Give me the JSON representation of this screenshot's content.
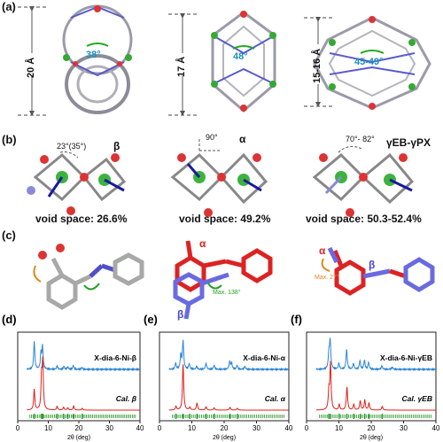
{
  "panels": {
    "a": {
      "label": "(a)",
      "structures": [
        {
          "height": "20 Å",
          "angle": "38°"
        },
        {
          "height": "17 Å",
          "angle": "48°"
        },
        {
          "height": "15-16 Å",
          "angle": "45-49°"
        }
      ]
    },
    "b": {
      "label": "(b)",
      "structures": [
        {
          "angle": "23°(35°)",
          "phase": "β",
          "void": "void space: 26.6%"
        },
        {
          "angle": "90°",
          "phase": "α",
          "void": "void space: 49.2%"
        },
        {
          "angle": "70°- 82°",
          "phase": "γEB-γPX",
          "void": "void space: 50.3-52.4%"
        }
      ]
    },
    "c": {
      "label": "(c)",
      "middle_annotation": "Max. 138°",
      "middle_alpha": "α",
      "middle_beta": "β",
      "right_annotation": "Max. 27°",
      "right_alpha": "α",
      "right_beta": "β"
    }
  },
  "colors": {
    "experimental": "#2f86d6",
    "calculated": "#e0201b",
    "ticks": "#2e9a2e",
    "teal_angle": "#1c8fb8"
  },
  "chart_data": [
    {
      "panel": "(d)",
      "type": "line",
      "xlabel": "2θ (deg)",
      "xlim": [
        0,
        40
      ],
      "xticks": [
        0,
        10,
        20,
        30,
        40
      ],
      "series": [
        {
          "name": "X-dia-6-Ni-β",
          "peaks": [
            [
              5.4,
              1.0
            ],
            [
              7.6,
              0.55
            ],
            [
              8.1,
              0.8
            ],
            [
              12.9,
              0.12
            ],
            [
              15.1,
              0.1
            ],
            [
              16.4,
              0.09
            ],
            [
              18.2,
              0.14
            ],
            [
              21.0,
              0.07
            ]
          ]
        },
        {
          "name": "Cal. β",
          "peaks": [
            [
              5.4,
              0.45
            ],
            [
              7.8,
              0.7
            ],
            [
              8.2,
              1.0
            ],
            [
              12.9,
              0.08
            ],
            [
              15.0,
              0.06
            ],
            [
              16.4,
              0.05
            ],
            [
              18.3,
              0.09
            ],
            [
              21.1,
              0.04
            ]
          ]
        }
      ]
    },
    {
      "panel": "(e)",
      "type": "line",
      "xlabel": "2θ (deg)",
      "xlim": [
        0,
        40
      ],
      "xticks": [
        0,
        10,
        20,
        30,
        40
      ],
      "series": [
        {
          "name": "X-dia-6-Ni-α",
          "peaks": [
            [
              5.0,
              0.22
            ],
            [
              6.6,
              0.5
            ],
            [
              7.3,
              1.0
            ],
            [
              9.2,
              0.2
            ],
            [
              11.5,
              0.1
            ],
            [
              14.4,
              0.22
            ],
            [
              16.9,
              0.15
            ],
            [
              21.7,
              0.28
            ],
            [
              22.3,
              0.22
            ],
            [
              24.0,
              0.15
            ],
            [
              26.4,
              0.1
            ]
          ]
        },
        {
          "name": "Cal. α",
          "peaks": [
            [
              5.1,
              0.08
            ],
            [
              7.3,
              1.0
            ],
            [
              9.4,
              0.06
            ],
            [
              11.6,
              0.15
            ],
            [
              14.4,
              0.07
            ],
            [
              16.9,
              0.05
            ],
            [
              21.8,
              0.06
            ],
            [
              24.1,
              0.04
            ]
          ]
        }
      ]
    },
    {
      "panel": "(f)",
      "type": "line",
      "xlabel": "2θ (deg)",
      "xlim": [
        0,
        40
      ],
      "xticks": [
        0,
        10,
        20,
        30,
        40
      ],
      "series": [
        {
          "name": "X-dia-6-Ni-γEB",
          "peaks": [
            [
              6.9,
              0.55
            ],
            [
              7.3,
              1.0
            ],
            [
              10.0,
              0.22
            ],
            [
              12.4,
              0.7
            ],
            [
              14.5,
              0.2
            ],
            [
              16.5,
              0.3
            ],
            [
              17.9,
              0.32
            ],
            [
              19.2,
              0.25
            ],
            [
              23.3,
              0.12
            ],
            [
              26.5,
              0.08
            ]
          ]
        },
        {
          "name": "Cal. γEB",
          "peaks": [
            [
              6.9,
              0.4
            ],
            [
              7.4,
              1.0
            ],
            [
              10.1,
              0.12
            ],
            [
              12.5,
              0.5
            ],
            [
              14.6,
              0.12
            ],
            [
              16.6,
              0.2
            ],
            [
              18.0,
              0.22
            ],
            [
              19.3,
              0.15
            ],
            [
              23.4,
              0.08
            ]
          ]
        }
      ]
    }
  ]
}
